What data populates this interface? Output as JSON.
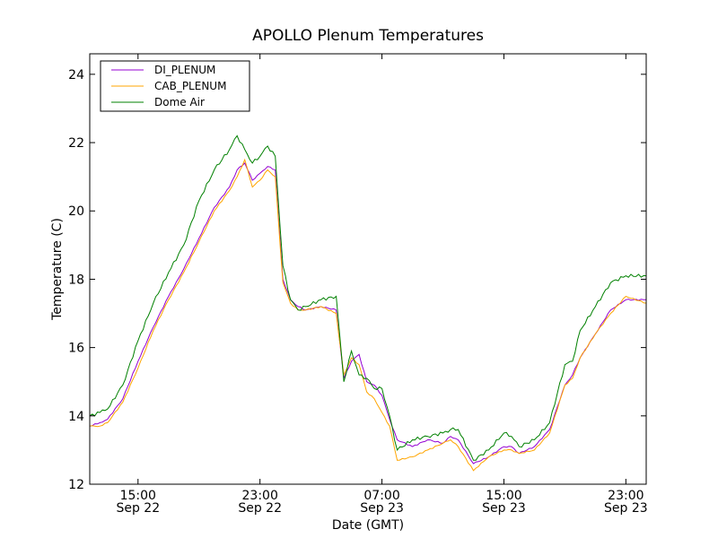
{
  "chart_data": {
    "type": "line",
    "title": "APOLLO Plenum Temperatures",
    "xlabel": "Date (GMT)",
    "ylabel": "Temperature (C)",
    "ylim": [
      12,
      24.6
    ],
    "xlim": [
      "2012-09-22T11:50",
      "2012-09-24T00:20"
    ],
    "x_unit": "datetime (GMT)",
    "yticks": [
      12,
      14,
      16,
      18,
      20,
      22,
      24
    ],
    "xticks": [
      {
        "x": "2012-09-22T15:00",
        "time": "15:00",
        "date": "Sep 22"
      },
      {
        "x": "2012-09-22T23:00",
        "time": "23:00",
        "date": "Sep 22"
      },
      {
        "x": "2012-09-23T07:00",
        "time": "07:00",
        "date": "Sep 23"
      },
      {
        "x": "2012-09-23T15:00",
        "time": "15:00",
        "date": "Sep 23"
      },
      {
        "x": "2012-09-23T23:00",
        "time": "23:00",
        "date": "Sep 23"
      }
    ],
    "grid": false,
    "legend_position": "top-left",
    "x": [
      "2012-09-22T11:50",
      "2012-09-22T12:30",
      "2012-09-22T13:00",
      "2012-09-22T14:00",
      "2012-09-22T15:00",
      "2012-09-22T16:00",
      "2012-09-22T17:00",
      "2012-09-22T18:00",
      "2012-09-22T19:00",
      "2012-09-22T20:00",
      "2012-09-22T21:00",
      "2012-09-22T21:30",
      "2012-09-22T22:00",
      "2012-09-22T22:30",
      "2012-09-22T23:00",
      "2012-09-22T23:30",
      "2012-09-23T00:00",
      "2012-09-23T00:30",
      "2012-09-23T01:00",
      "2012-09-23T01:30",
      "2012-09-23T02:00",
      "2012-09-23T03:00",
      "2012-09-23T04:00",
      "2012-09-23T04:30",
      "2012-09-23T05:00",
      "2012-09-23T05:30",
      "2012-09-23T06:00",
      "2012-09-23T06:30",
      "2012-09-23T07:00",
      "2012-09-23T07:30",
      "2012-09-23T08:00",
      "2012-09-23T09:00",
      "2012-09-23T10:00",
      "2012-09-23T11:00",
      "2012-09-23T11:30",
      "2012-09-23T12:00",
      "2012-09-23T13:00",
      "2012-09-23T14:00",
      "2012-09-23T15:00",
      "2012-09-23T15:30",
      "2012-09-23T16:00",
      "2012-09-23T17:00",
      "2012-09-23T18:00",
      "2012-09-23T19:00",
      "2012-09-23T19:30",
      "2012-09-23T20:00",
      "2012-09-23T21:00",
      "2012-09-23T22:00",
      "2012-09-23T23:00",
      "2012-09-24T00:20"
    ],
    "series": [
      {
        "name": "DI_PLENUM",
        "color": "#9400d3",
        "values": [
          13.7,
          13.8,
          13.9,
          14.5,
          15.6,
          16.6,
          17.5,
          18.3,
          19.2,
          20.1,
          20.7,
          21.2,
          21.4,
          20.9,
          21.1,
          21.3,
          21.2,
          18.0,
          17.4,
          17.2,
          17.1,
          17.2,
          17.1,
          15.1,
          15.6,
          15.8,
          15.0,
          14.9,
          14.6,
          13.9,
          13.3,
          13.1,
          13.3,
          13.2,
          13.4,
          13.3,
          12.6,
          12.8,
          13.1,
          13.1,
          12.9,
          13.1,
          13.6,
          14.9,
          15.2,
          15.7,
          16.4,
          17.1,
          17.4,
          17.4
        ]
      },
      {
        "name": "CAB_PLENUM",
        "color": "#ffa500",
        "values": [
          13.7,
          13.7,
          13.8,
          14.4,
          15.4,
          16.5,
          17.4,
          18.2,
          19.1,
          20.0,
          20.6,
          21.0,
          21.5,
          20.7,
          20.9,
          21.2,
          21.0,
          17.9,
          17.3,
          17.1,
          17.1,
          17.2,
          17.0,
          15.2,
          15.7,
          15.5,
          14.7,
          14.5,
          14.1,
          13.7,
          12.7,
          12.8,
          13.0,
          13.2,
          13.3,
          13.1,
          12.4,
          12.8,
          13.0,
          13.0,
          12.9,
          13.0,
          13.5,
          14.9,
          15.1,
          15.7,
          16.4,
          17.0,
          17.5,
          17.3
        ]
      },
      {
        "name": "Dome Air",
        "color": "#008000",
        "values": [
          14.0,
          14.1,
          14.2,
          14.9,
          16.2,
          17.3,
          18.2,
          19.0,
          20.3,
          21.2,
          21.8,
          22.2,
          21.8,
          21.4,
          21.6,
          21.9,
          21.6,
          18.4,
          17.4,
          17.1,
          17.2,
          17.4,
          17.5,
          15.0,
          15.9,
          15.2,
          15.1,
          14.8,
          14.8,
          14.0,
          13.0,
          13.3,
          13.4,
          13.5,
          13.6,
          13.6,
          12.7,
          13.0,
          13.5,
          13.4,
          13.1,
          13.3,
          13.8,
          15.5,
          15.6,
          16.5,
          17.2,
          17.9,
          18.1,
          18.1
        ]
      }
    ]
  }
}
